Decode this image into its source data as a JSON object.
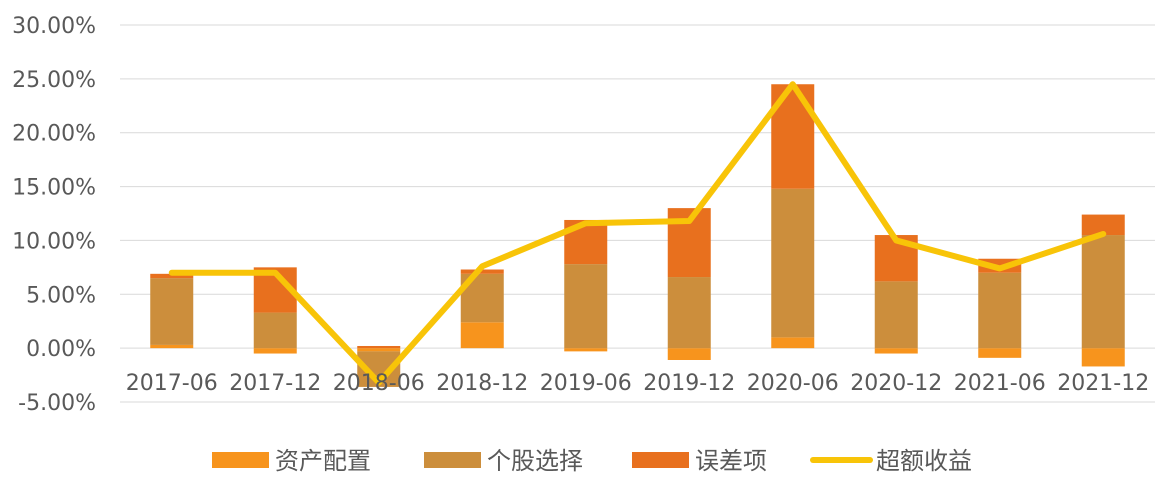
{
  "chart_data": {
    "type": "bar",
    "stacked": true,
    "categories": [
      "2017-06",
      "2017-12",
      "2018-06",
      "2018-12",
      "2019-06",
      "2019-12",
      "2020-06",
      "2020-12",
      "2021-06",
      "2021-12"
    ],
    "y_tick_labels": [
      "30.00%",
      "25.00%",
      "20.00%",
      "15.00%",
      "10.00%",
      "5.00%",
      "0.00%",
      "-5.00%"
    ],
    "ylim": [
      -5,
      30
    ],
    "grid": true,
    "legend_position": "bottom",
    "series": [
      {
        "name": "资产配置",
        "kind": "bar",
        "color": "#F7941D",
        "values": [
          0.3,
          -0.5,
          -0.3,
          2.4,
          -0.3,
          -1.1,
          1.0,
          -0.5,
          -0.9,
          -1.7
        ]
      },
      {
        "name": "个股选择",
        "kind": "bar",
        "color": "#CC8E3C",
        "values": [
          6.2,
          3.3,
          -3.3,
          4.5,
          7.8,
          6.6,
          13.8,
          6.2,
          7.0,
          10.5
        ]
      },
      {
        "name": "误差项",
        "kind": "bar",
        "color": "#E8701E",
        "values": [
          0.4,
          4.2,
          0.2,
          0.4,
          4.1,
          6.4,
          9.7,
          4.3,
          1.3,
          1.9
        ]
      },
      {
        "name": "超额收益",
        "kind": "line",
        "color": "#F8C408",
        "values": [
          7.0,
          7.0,
          -3.2,
          7.6,
          11.6,
          11.8,
          24.5,
          10.0,
          7.4,
          10.6
        ]
      }
    ]
  }
}
